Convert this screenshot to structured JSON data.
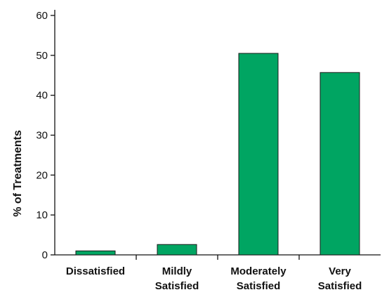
{
  "chart_data": {
    "type": "bar",
    "categories": [
      "Dissatisfied",
      "Mildly Satisfied",
      "Moderately Satisfied",
      "Very Satisfied"
    ],
    "category_lines": [
      [
        "Dissatisfied"
      ],
      [
        "Mildly",
        "Satisfied"
      ],
      [
        "Moderately",
        "Satisfied"
      ],
      [
        "Very",
        "Satisfied"
      ]
    ],
    "values": [
      1.0,
      2.6,
      50.5,
      45.7
    ],
    "title": "",
    "xlabel": "",
    "ylabel": "% of Treatments",
    "ylim": [
      0,
      60
    ],
    "yticks": [
      0,
      10,
      20,
      30,
      40,
      50,
      60
    ],
    "grid": false,
    "legend": "none",
    "bar_color": "#00a562",
    "bar_edge_color": "#1a1a1a"
  }
}
